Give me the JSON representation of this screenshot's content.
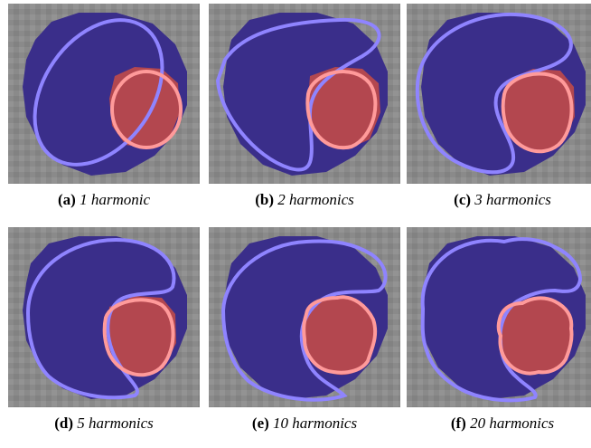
{
  "colors": {
    "background_tissue": "#8c8c8c",
    "blue_region": "#3a2e8a",
    "blue_contour": "#8f84ff",
    "red_region": "#b3474f",
    "red_contour": "#ff9a9a"
  },
  "panels": [
    {
      "label": "(a)",
      "text": "1 harmonic"
    },
    {
      "label": "(b)",
      "text": "2 harmonics"
    },
    {
      "label": "(c)",
      "text": "3 harmonics"
    },
    {
      "label": "(d)",
      "text": "5 harmonics"
    },
    {
      "label": "(e)",
      "text": "10 harmonics"
    },
    {
      "label": "(f)",
      "text": "20 harmonics"
    }
  ]
}
